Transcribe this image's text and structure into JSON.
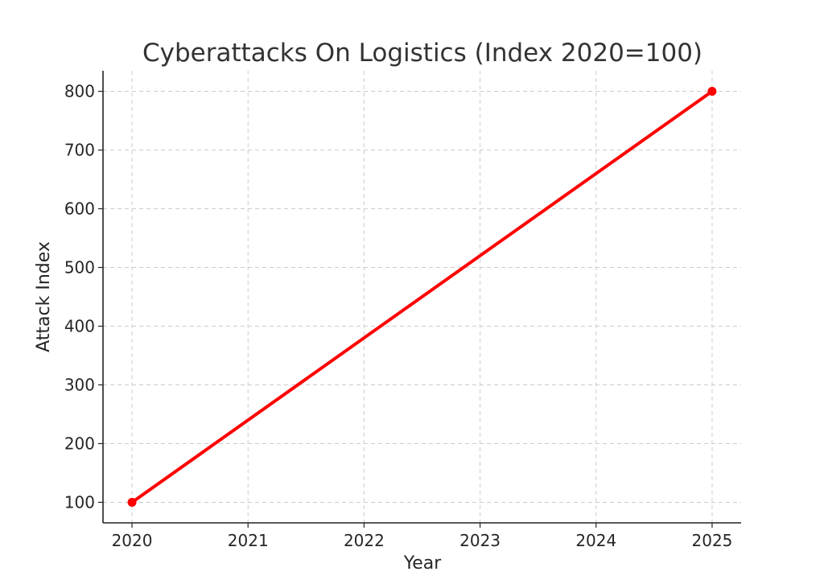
{
  "chart_data": {
    "type": "line",
    "title": "Cyberattacks On Logistics (Index 2020=100)",
    "xlabel": "Year",
    "ylabel": "Attack Index",
    "x_ticks": [
      "2020",
      "2021",
      "2022",
      "2023",
      "2024",
      "2025"
    ],
    "y_ticks": [
      "100",
      "200",
      "300",
      "400",
      "500",
      "600",
      "700",
      "800"
    ],
    "xlim": [
      2019.75,
      2025.25
    ],
    "ylim": [
      65,
      835
    ],
    "grid": true,
    "series": [
      {
        "color": "#ff0000",
        "marker": "circle-endpoints",
        "x": [
          2020,
          2025
        ],
        "y": [
          100,
          800
        ]
      }
    ]
  }
}
